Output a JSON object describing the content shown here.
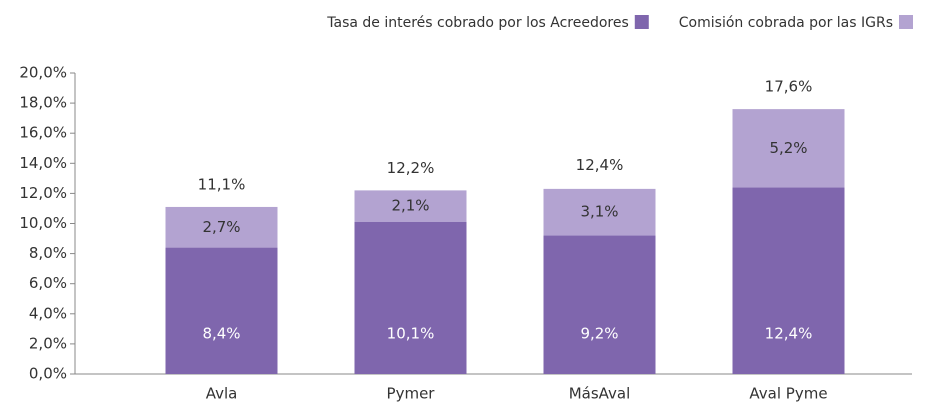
{
  "chart_data": {
    "type": "stacked_bar",
    "categories": [
      "Avla",
      "Pymer",
      "MásAval",
      "Aval Pyme"
    ],
    "series": [
      {
        "name": "Tasa de interés cobrado por los Acreedores",
        "color": "#7f66ad",
        "values": [
          8.4,
          10.1,
          9.2,
          12.4
        ],
        "value_labels": [
          "8,4%",
          "10,1%",
          "9,2%",
          "12,4%"
        ]
      },
      {
        "name": "Comisión cobrada por las IGRs",
        "color": "#b3a3d1",
        "values": [
          2.7,
          2.1,
          3.1,
          5.2
        ],
        "value_labels": [
          "2,7%",
          "2,1%",
          "3,1%",
          "5,2%"
        ]
      }
    ],
    "totals": [
      11.1,
      12.2,
      12.4,
      17.6
    ],
    "total_labels": [
      "11,1%",
      "12,2%",
      "12,4%",
      "17,6%"
    ],
    "ylim": [
      0,
      20
    ],
    "yticks": [
      {
        "value": 0,
        "label": "0,0%"
      },
      {
        "value": 2,
        "label": "2,0%"
      },
      {
        "value": 4,
        "label": "4,0%"
      },
      {
        "value": 6,
        "label": "6,0%"
      },
      {
        "value": 8,
        "label": "8,0%"
      },
      {
        "value": 10,
        "label": "10,0%"
      },
      {
        "value": 12,
        "label": "12,0%"
      },
      {
        "value": 14,
        "label": "14,0%"
      },
      {
        "value": 16,
        "label": "16,0%"
      },
      {
        "value": 18,
        "label": "18,0%"
      },
      {
        "value": 20,
        "label": "20,0%"
      }
    ],
    "legend": "top-right"
  }
}
